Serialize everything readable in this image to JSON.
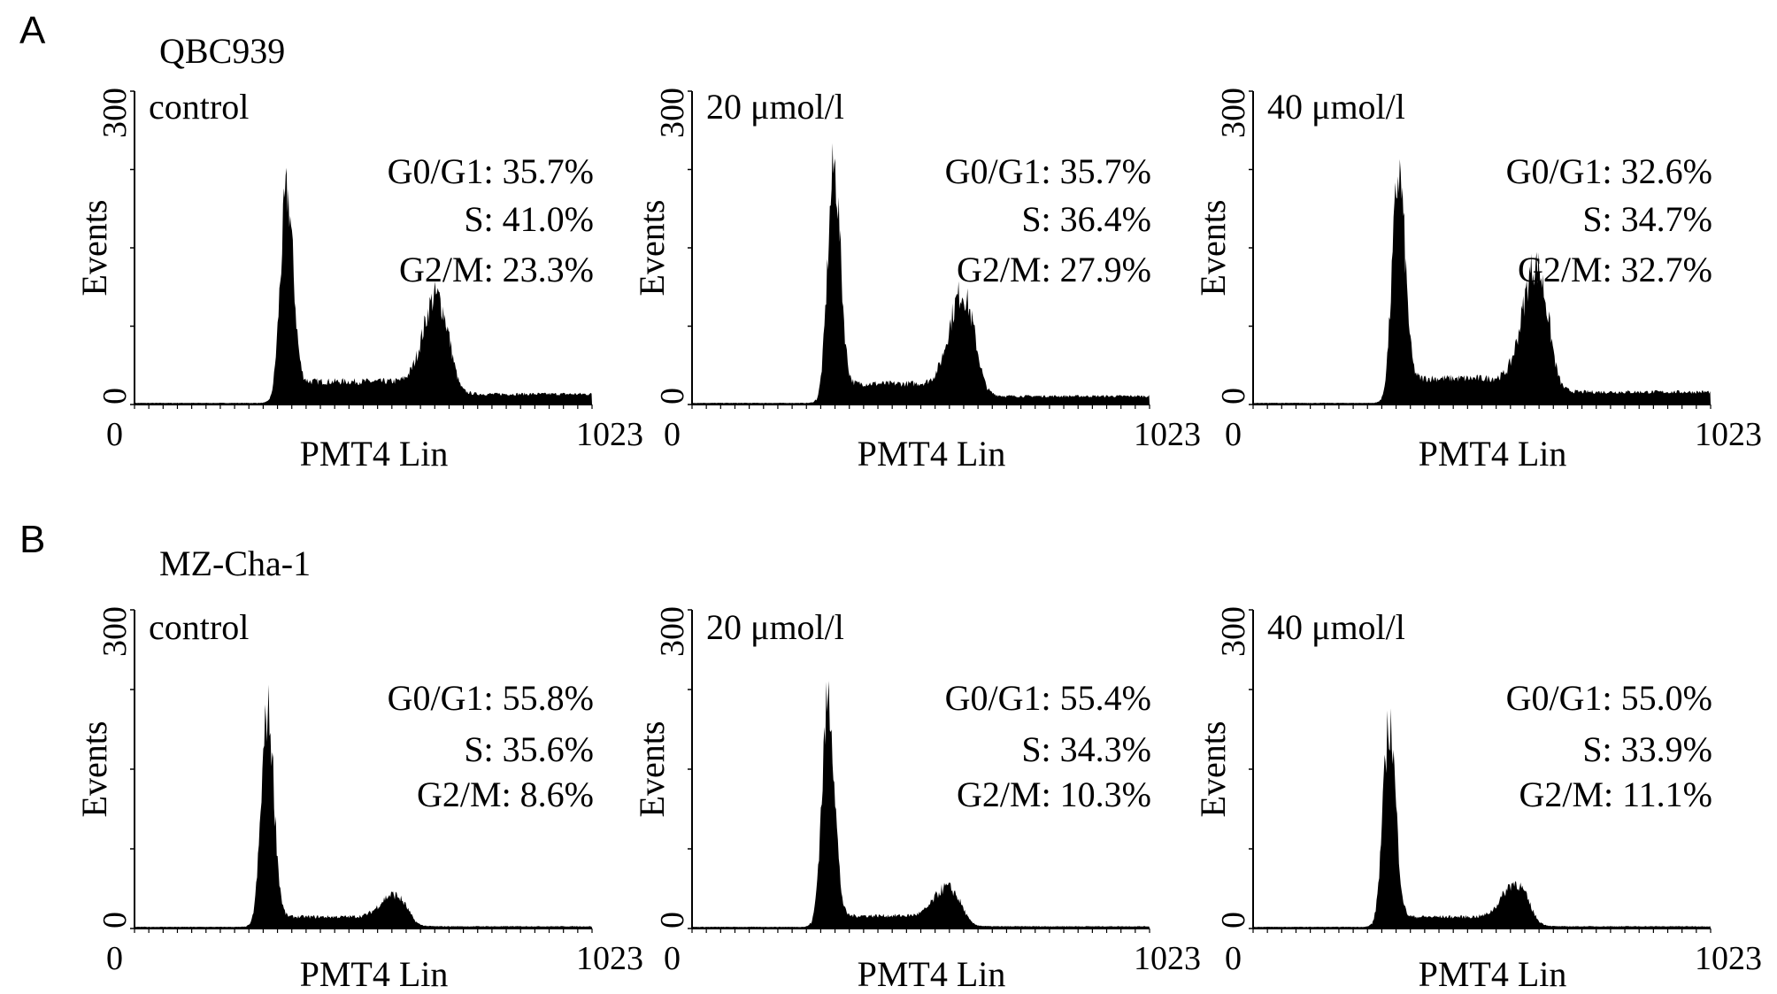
{
  "panels": [
    {
      "letter": "A",
      "cell_line": "QBC939"
    },
    {
      "letter": "B",
      "cell_line": "MZ-Cha-1"
    }
  ],
  "chart_data": [
    {
      "type": "area",
      "row": 0,
      "title": "control",
      "xlabel": "PMT4 Lin",
      "ylabel": "Events",
      "xlim": [
        0,
        1023
      ],
      "ylim": [
        0,
        300
      ],
      "xticks": [
        "0",
        "1023"
      ],
      "yticks": [
        "0",
        "300"
      ],
      "stats": [
        "G0/G1: 35.7%",
        "S: 41.0%",
        "G2/M: 23.3%"
      ],
      "histogram": {
        "g1_channel": 341,
        "g1_peak_events": 180,
        "g2_channel": 674,
        "g2_peak_events": 82,
        "s_phase_events": 22,
        "tail_events": 10
      }
    },
    {
      "type": "area",
      "row": 0,
      "title": "20 μmol/l",
      "xlabel": "PMT4 Lin",
      "ylabel": "Events",
      "xlim": [
        0,
        1023
      ],
      "ylim": [
        0,
        300
      ],
      "xticks": [
        "0",
        "1023"
      ],
      "yticks": [
        "0",
        "300"
      ],
      "stats": [
        "G0/G1: 35.7%",
        "S: 36.4%",
        "G2/M: 27.9%"
      ],
      "histogram": {
        "g1_channel": 318,
        "g1_peak_events": 207,
        "g2_channel": 603,
        "g2_peak_events": 87,
        "s_phase_events": 20,
        "tail_events": 8
      }
    },
    {
      "type": "area",
      "row": 0,
      "title": "40 μmol/l",
      "xlabel": "PMT4 Lin",
      "ylabel": "Events",
      "xlim": [
        0,
        1023
      ],
      "ylim": [
        0,
        300
      ],
      "xticks": [
        "0",
        "1023"
      ],
      "yticks": [
        "0",
        "300"
      ],
      "stats": [
        "G0/G1: 32.6%",
        "S: 34.7%",
        "G2/M: 32.7%"
      ],
      "histogram": {
        "g1_channel": 326,
        "g1_peak_events": 196,
        "g2_channel": 631,
        "g2_peak_events": 109,
        "s_phase_events": 25,
        "tail_events": 12
      }
    },
    {
      "type": "area",
      "row": 1,
      "title": "control",
      "xlabel": "PMT4 Lin",
      "ylabel": "Events",
      "xlim": [
        0,
        1023
      ],
      "ylim": [
        0,
        300
      ],
      "xticks": [
        "0",
        "1023"
      ],
      "yticks": [
        "0",
        "300"
      ],
      "stats": [
        "G0/G1: 55.8%",
        "S: 35.6%",
        "G2/M: 8.6%"
      ],
      "histogram": {
        "g1_channel": 298,
        "g1_peak_events": 193,
        "g2_channel": 578,
        "g2_peak_events": 21,
        "s_phase_events": 11,
        "tail_events": 2
      }
    },
    {
      "type": "area",
      "row": 1,
      "title": "20 μmol/l",
      "xlabel": "PMT4 Lin",
      "ylabel": "Events",
      "xlim": [
        0,
        1023
      ],
      "ylim": [
        0,
        300
      ],
      "xticks": [
        "0",
        "1023"
      ],
      "yticks": [
        "0",
        "300"
      ],
      "stats": [
        "G0/G1: 55.4%",
        "S: 34.3%",
        "G2/M: 10.3%"
      ],
      "histogram": {
        "g1_channel": 305,
        "g1_peak_events": 204,
        "g2_channel": 570,
        "g2_peak_events": 27,
        "s_phase_events": 12,
        "tail_events": 2
      }
    },
    {
      "type": "area",
      "row": 1,
      "title": "40 μmol/l",
      "xlabel": "PMT4 Lin",
      "ylabel": "Events",
      "xlim": [
        0,
        1023
      ],
      "ylim": [
        0,
        300
      ],
      "xticks": [
        "0",
        "1023"
      ],
      "yticks": [
        "0",
        "300"
      ],
      "stats": [
        "G0/G1: 55.0%",
        "S: 33.9%",
        "G2/M: 11.1%"
      ],
      "histogram": {
        "g1_channel": 305,
        "g1_peak_events": 182,
        "g2_channel": 585,
        "g2_peak_events": 32,
        "s_phase_events": 11,
        "tail_events": 2
      }
    }
  ]
}
